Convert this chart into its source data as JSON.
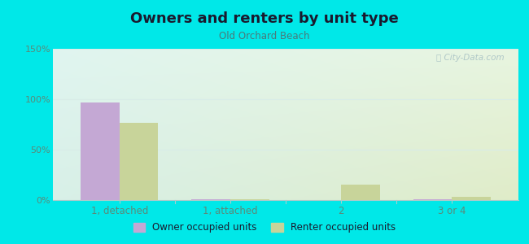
{
  "title": "Owners and renters by unit type",
  "subtitle": "Old Orchard Beach",
  "categories": [
    "1, detached",
    "1, attached",
    "2",
    "3 or 4"
  ],
  "owner_values": [
    97,
    1,
    0,
    1
  ],
  "renter_values": [
    77,
    1,
    15,
    3
  ],
  "owner_color": "#c4a8d4",
  "renter_color": "#c8d49a",
  "ylim": [
    0,
    150
  ],
  "yticks": [
    0,
    50,
    100,
    150
  ],
  "ytick_labels": [
    "0%",
    "50%",
    "100%",
    "150%"
  ],
  "legend_owner": "Owner occupied units",
  "legend_renter": "Renter occupied units",
  "background_color": "#00e8e8",
  "plot_bg_top_left": "#e0f5f0",
  "plot_bg_bottom_right": "#e8f0d0",
  "bar_width": 0.35,
  "title_color": "#1a1a2e",
  "subtitle_color": "#4a7a7a",
  "tick_color": "#5a8a7a",
  "watermark_color": "#b0c8c8",
  "grid_color": "#d8ece8"
}
